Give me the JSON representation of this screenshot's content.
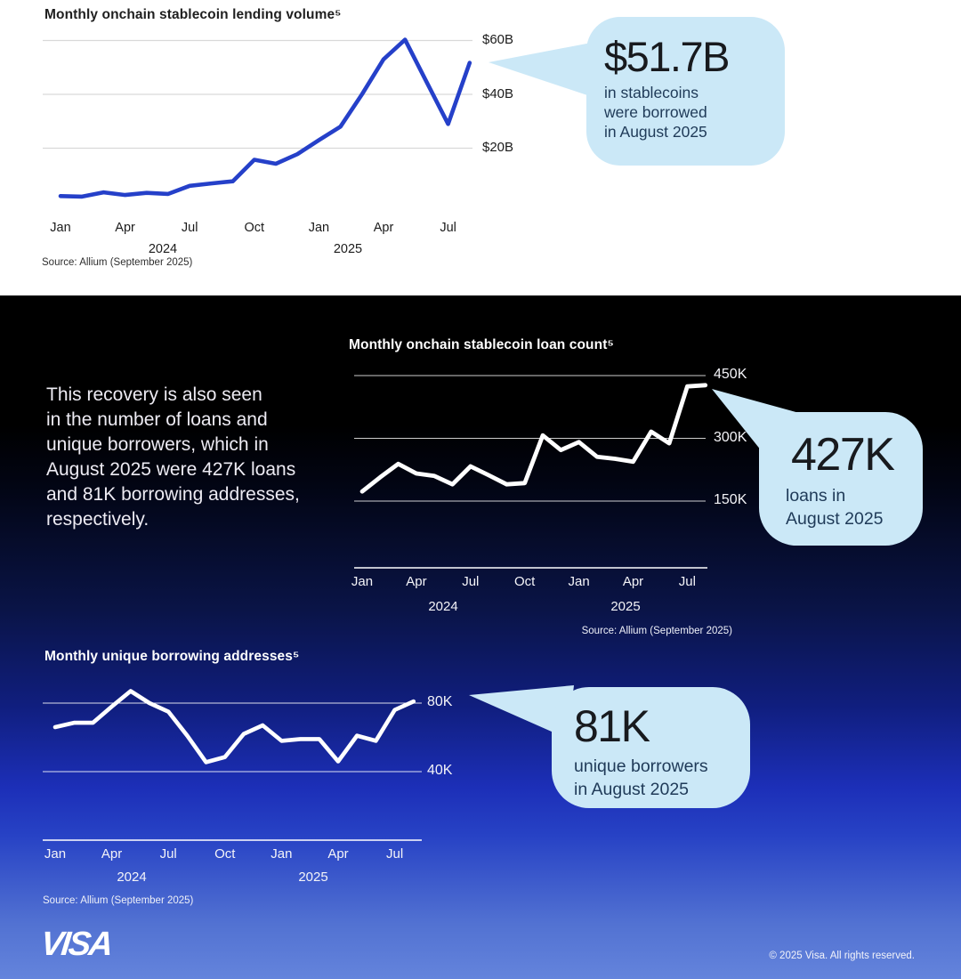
{
  "colors": {
    "accent_blue": "#2540c9",
    "callout_bg": "#cbe8f7",
    "callout_number": "#181a1e",
    "callout_caption": "#1f3a58",
    "dark_section_top": "#000000",
    "dark_section_bottom": "#6484dc"
  },
  "narrative": {
    "lines": [
      "This recovery is also seen",
      "in the number of loans and",
      "unique borrowers, which in",
      "August 2025 were 427K loans",
      "and 81K borrowing addresses,",
      "respectively."
    ]
  },
  "chart_data": [
    {
      "type": "line",
      "title": "Monthly onchain stablecoin lending volume⁵",
      "source": "Source: Allium (September 2025)",
      "unit": "USD billions",
      "ylim": [
        0,
        65
      ],
      "grid": true,
      "legend": "none",
      "x": [
        "Jan 2024",
        "Feb 2024",
        "Mar 2024",
        "Apr 2024",
        "May 2024",
        "Jun 2024",
        "Jul 2024",
        "Aug 2024",
        "Sep 2024",
        "Oct 2024",
        "Nov 2024",
        "Dec 2024",
        "Jan 2025",
        "Feb 2025",
        "Mar 2025",
        "Apr 2025",
        "May 2025",
        "Jun 2025",
        "Jul 2025",
        "Aug 2025"
      ],
      "values": [
        2.2,
        2.0,
        3.6,
        2.6,
        3.4,
        3.0,
        6.0,
        6.9,
        7.7,
        15.7,
        14.2,
        17.8,
        23,
        28,
        40,
        53,
        60.3,
        44.6,
        29,
        51.7
      ],
      "y_ticks": [
        {
          "label": "$60B",
          "value": 60
        },
        {
          "label": "$40B",
          "value": 40
        },
        {
          "label": "$20B",
          "value": 20
        }
      ],
      "x_ticks": [
        {
          "label": "Jan",
          "month_index": 0
        },
        {
          "label": "Apr",
          "month_index": 3
        },
        {
          "label": "Jul",
          "month_index": 6
        },
        {
          "label": "Oct",
          "month_index": 9
        },
        {
          "label": "Jan",
          "month_index": 12
        },
        {
          "label": "Apr",
          "month_index": 15
        },
        {
          "label": "Jul",
          "month_index": 18
        }
      ],
      "year_labels": [
        "2024",
        "2025"
      ]
    },
    {
      "type": "line",
      "title": "Monthly onchain stablecoin loan count⁵",
      "source": "Source: Allium (September 2025)",
      "unit": "loans (thousands)",
      "ylim": [
        150,
        460
      ],
      "grid": true,
      "legend": "none",
      "x": [
        "Jan 2024",
        "Feb 2024",
        "Mar 2024",
        "Apr 2024",
        "May 2024",
        "Jun 2024",
        "Jul 2024",
        "Aug 2024",
        "Sep 2024",
        "Oct 2024",
        "Nov 2024",
        "Dec 2024",
        "Jan 2025",
        "Feb 2025",
        "Mar 2025",
        "Apr 2025",
        "May 2025",
        "Jun 2025",
        "Jul 2025",
        "Aug 2025"
      ],
      "values": [
        173,
        207,
        239,
        216,
        210,
        190,
        233,
        212,
        190,
        193,
        307,
        272,
        291,
        256,
        251,
        244,
        316,
        288,
        424,
        427
      ],
      "y_ticks": [
        {
          "label": "450K",
          "value": 450
        },
        {
          "label": "300K",
          "value": 300
        },
        {
          "label": "150K",
          "value": 150
        }
      ],
      "x_ticks": [
        {
          "label": "Jan",
          "month_index": 0
        },
        {
          "label": "Apr",
          "month_index": 3
        },
        {
          "label": "Jul",
          "month_index": 6
        },
        {
          "label": "Oct",
          "month_index": 9
        },
        {
          "label": "Jan",
          "month_index": 12
        },
        {
          "label": "Apr",
          "month_index": 15
        },
        {
          "label": "Jul",
          "month_index": 18
        }
      ],
      "year_labels": [
        "2024",
        "2025"
      ]
    },
    {
      "type": "line",
      "title": "Monthly unique borrowing addresses⁵",
      "source": "Source: Allium (September 2025)",
      "unit": "addresses (thousands)",
      "ylim": [
        30,
        95
      ],
      "grid": true,
      "legend": "none",
      "x": [
        "Jan 2024",
        "Feb 2024",
        "Mar 2024",
        "Apr 2024",
        "May 2024",
        "Jun 2024",
        "Jul 2024",
        "Aug 2024",
        "Sep 2024",
        "Oct 2024",
        "Nov 2024",
        "Dec 2024",
        "Jan 2025",
        "Feb 2025",
        "Mar 2025",
        "Apr 2025",
        "May 2025",
        "Jun 2025",
        "Jul 2025",
        "Aug 2025"
      ],
      "values": [
        66,
        68.5,
        68.5,
        78,
        87,
        80,
        75,
        61,
        45.5,
        48.5,
        62,
        67,
        58,
        59,
        59,
        46,
        61,
        58,
        76,
        81
      ],
      "y_ticks": [
        {
          "label": "80K",
          "value": 80
        },
        {
          "label": "40K",
          "value": 40
        }
      ],
      "x_ticks": [
        {
          "label": "Jan",
          "month_index": 0
        },
        {
          "label": "Apr",
          "month_index": 3
        },
        {
          "label": "Jul",
          "month_index": 6
        },
        {
          "label": "Oct",
          "month_index": 9
        },
        {
          "label": "Jan",
          "month_index": 12
        },
        {
          "label": "Apr",
          "month_index": 15
        },
        {
          "label": "Jul",
          "month_index": 18
        }
      ],
      "year_labels": [
        "2024",
        "2025"
      ]
    }
  ],
  "callouts": [
    {
      "number": "$51.7B",
      "lines": [
        "in stablecoins",
        "were borrowed",
        "in August 2025"
      ]
    },
    {
      "number": "427K",
      "lines": [
        "loans in",
        "August 2025"
      ]
    },
    {
      "number": "81K",
      "lines": [
        "unique borrowers",
        "in August 2025"
      ]
    }
  ],
  "footer": {
    "logo_text": "VISA",
    "copyright": "© 2025 Visa. All rights reserved."
  }
}
